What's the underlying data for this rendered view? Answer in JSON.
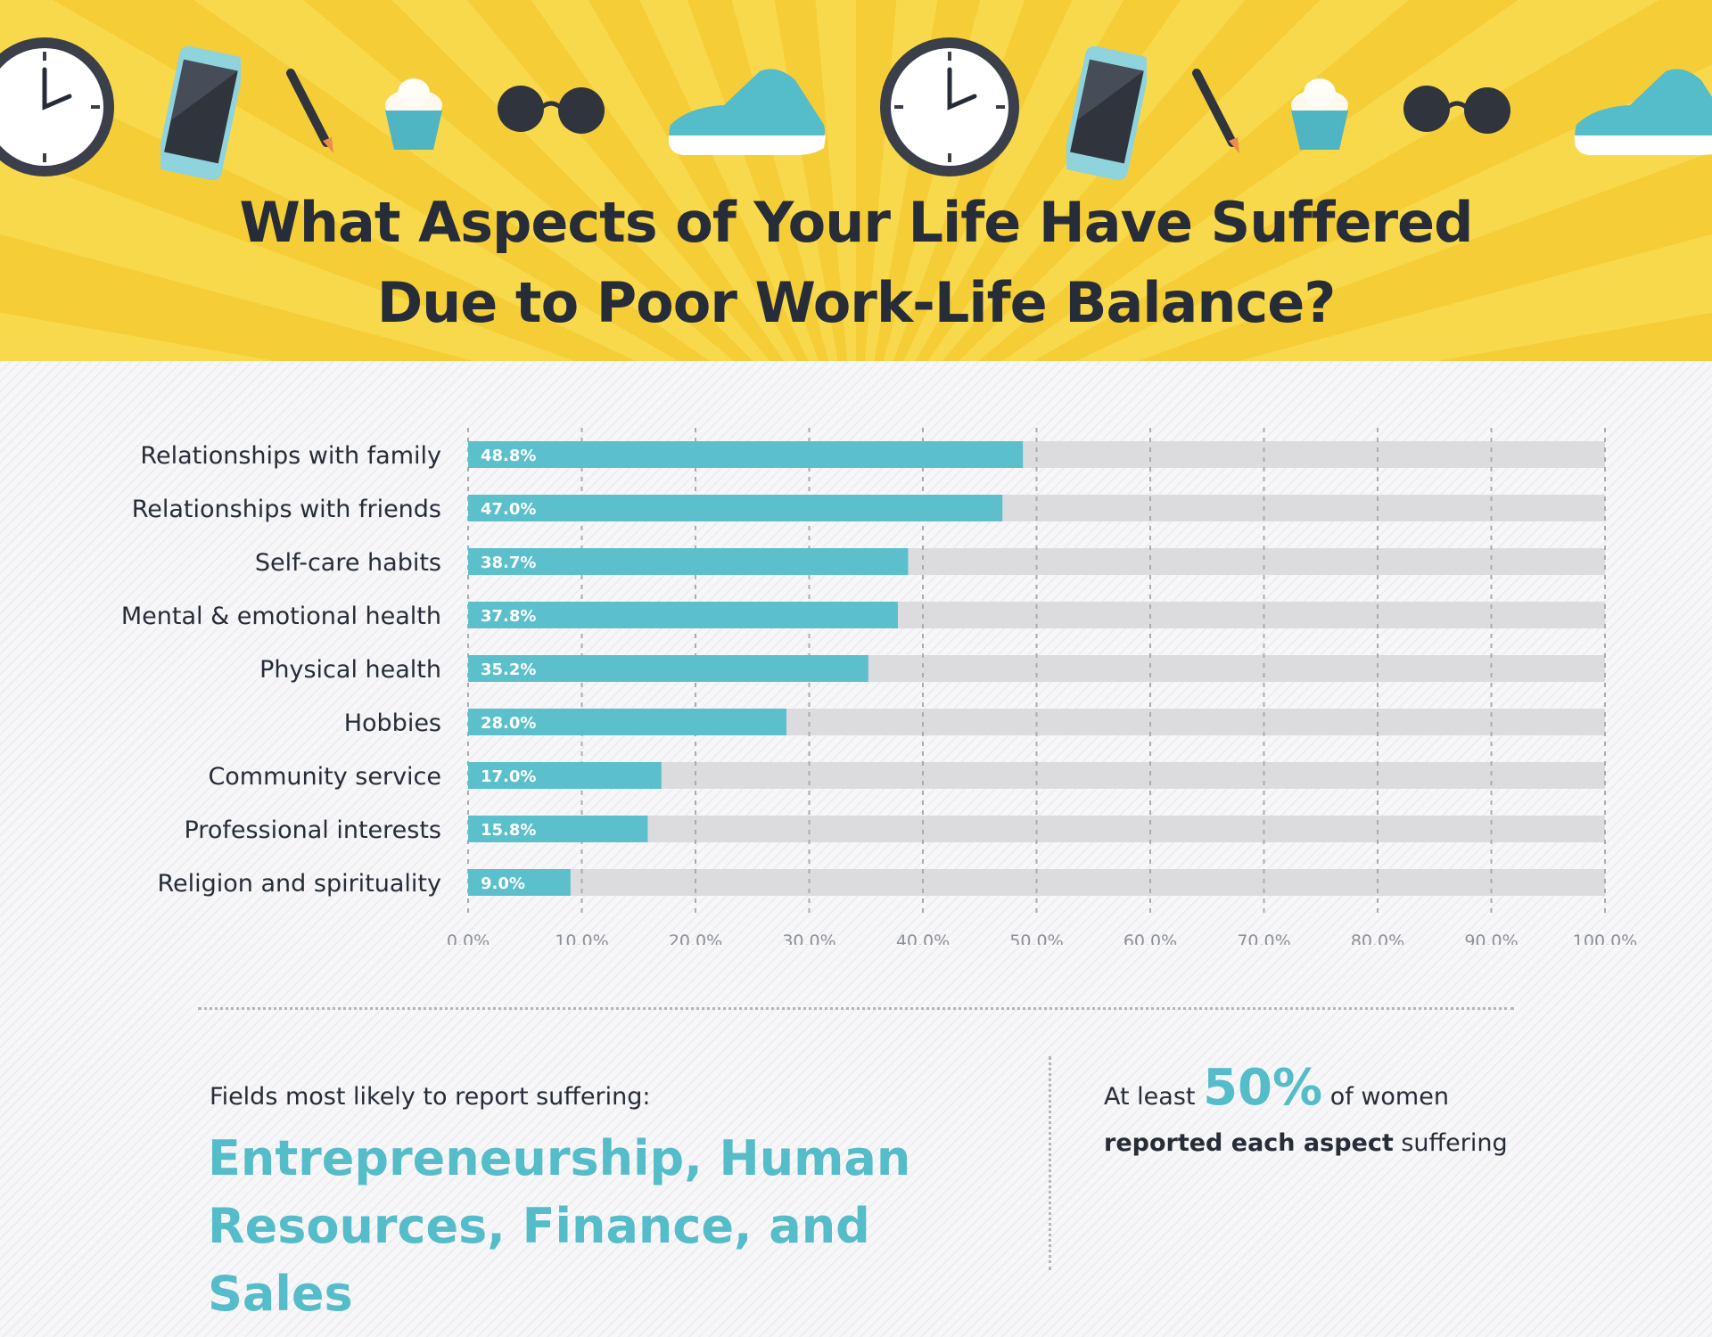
{
  "header": {
    "title_line1": "What Aspects of Your Life Have Suffered",
    "title_line2": "Due to Poor Work-Life Balance?"
  },
  "colors": {
    "banner": "#f7d23e",
    "bar": "#5bbfcc",
    "track": "#dcdcdf",
    "text": "#262c38",
    "accent": "#55bcc9"
  },
  "icons": [
    "clock-icon",
    "smartphone-icon",
    "pen-icon",
    "cupcake-icon",
    "sunglasses-icon",
    "sneaker-icon"
  ],
  "chart_data": {
    "type": "bar",
    "orientation": "horizontal",
    "categories": [
      "Relationships with family",
      "Relationships with friends",
      "Self-care habits",
      "Mental & emotional health",
      "Physical health",
      "Hobbies",
      "Community service",
      "Professional interests",
      "Religion and spirituality"
    ],
    "values": [
      48.8,
      47.0,
      38.7,
      37.8,
      35.2,
      28.0,
      17.0,
      15.8,
      9.0
    ],
    "value_labels": [
      "48.8%",
      "47.0%",
      "38.7%",
      "37.8%",
      "35.2%",
      "28.0%",
      "17.0%",
      "15.8%",
      "9.0%"
    ],
    "xlim": [
      0,
      100
    ],
    "xticks": [
      "0.0%",
      "10.0%",
      "20.0%",
      "30.0%",
      "40.0%",
      "50.0%",
      "60.0%",
      "70.0%",
      "80.0%",
      "90.0%",
      "100.0%"
    ],
    "grid": "vertical dashed",
    "legend": "none"
  },
  "footer": {
    "fields_intro": "Fields most likely to report suffering:",
    "fields_line1": "Entrepreneurship, Human",
    "fields_line2": "Resources, Finance, and Sales",
    "stat_pre": "At least",
    "stat_big": "50%",
    "stat_post": "of women",
    "stat_line2_bold": "reported each aspect",
    "stat_line2_rest": "suffering"
  }
}
